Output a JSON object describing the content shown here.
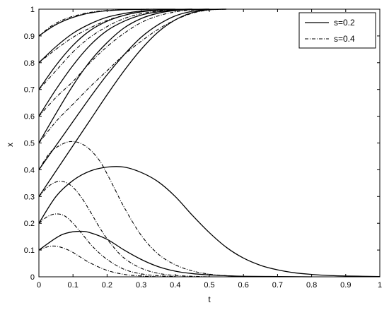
{
  "chart_data": {
    "type": "line",
    "xlabel": "t",
    "ylabel": "x",
    "xlim": [
      0,
      1
    ],
    "ylim": [
      0,
      1
    ],
    "x_ticks": [
      "0",
      "0.1",
      "0.2",
      "0.3",
      "0.4",
      "0.5",
      "0.6",
      "0.7",
      "0.8",
      "0.9",
      "1"
    ],
    "y_ticks": [
      "0",
      "0.1",
      "0.2",
      "0.3",
      "0.4",
      "0.5",
      "0.6",
      "0.7",
      "0.8",
      "0.9",
      "1"
    ],
    "legend": {
      "position": "top-right",
      "entries": [
        {
          "label": "s=0.2",
          "style": "solid"
        },
        {
          "label": "s=0.4",
          "style": "dash-dot"
        }
      ]
    },
    "series": [
      {
        "style": "solid",
        "x": [
          0,
          0.04,
          0.08,
          0.12,
          0.16,
          0.2,
          0.25,
          0.3,
          0.35,
          0.4
        ],
        "y": [
          0.9,
          0.935,
          0.96,
          0.977,
          0.988,
          0.994,
          0.998,
          0.999,
          1,
          1
        ]
      },
      {
        "style": "solid",
        "x": [
          0,
          0.05,
          0.1,
          0.15,
          0.2,
          0.25,
          0.3,
          0.35,
          0.4,
          0.45
        ],
        "y": [
          0.8,
          0.86,
          0.91,
          0.945,
          0.97,
          0.984,
          0.993,
          0.997,
          0.999,
          1
        ]
      },
      {
        "style": "solid",
        "x": [
          0,
          0.05,
          0.1,
          0.15,
          0.2,
          0.25,
          0.3,
          0.35,
          0.4,
          0.45
        ],
        "y": [
          0.7,
          0.79,
          0.865,
          0.92,
          0.955,
          0.977,
          0.99,
          0.996,
          0.999,
          1
        ]
      },
      {
        "style": "solid",
        "x": [
          0,
          0.05,
          0.1,
          0.15,
          0.2,
          0.25,
          0.3,
          0.35,
          0.4,
          0.45,
          0.5
        ],
        "y": [
          0.6,
          0.7,
          0.79,
          0.865,
          0.92,
          0.955,
          0.978,
          0.99,
          0.996,
          0.999,
          1
        ]
      },
      {
        "style": "solid",
        "x": [
          0,
          0.05,
          0.1,
          0.15,
          0.2,
          0.25,
          0.3,
          0.35,
          0.4,
          0.45,
          0.5
        ],
        "y": [
          0.5,
          0.61,
          0.715,
          0.805,
          0.875,
          0.93,
          0.965,
          0.985,
          0.995,
          0.999,
          1
        ]
      },
      {
        "style": "solid",
        "x": [
          0,
          0.05,
          0.1,
          0.15,
          0.2,
          0.25,
          0.3,
          0.35,
          0.4,
          0.45,
          0.5,
          0.55
        ],
        "y": [
          0.4,
          0.49,
          0.58,
          0.67,
          0.755,
          0.83,
          0.895,
          0.942,
          0.975,
          0.992,
          0.999,
          1
        ]
      },
      {
        "style": "solid",
        "x": [
          0,
          0.05,
          0.1,
          0.15,
          0.2,
          0.25,
          0.3,
          0.35,
          0.4,
          0.45,
          0.5,
          0.55
        ],
        "y": [
          0.3,
          0.395,
          0.49,
          0.585,
          0.68,
          0.77,
          0.85,
          0.915,
          0.96,
          0.987,
          0.998,
          1
        ]
      },
      {
        "style": "solid",
        "x": [
          0,
          0.05,
          0.1,
          0.15,
          0.2,
          0.25,
          0.3,
          0.35,
          0.4,
          0.45,
          0.5,
          0.55,
          0.6,
          0.65,
          0.7,
          0.75,
          0.8,
          0.85,
          0.9,
          0.95,
          1
        ],
        "y": [
          0.2,
          0.3,
          0.36,
          0.395,
          0.41,
          0.41,
          0.39,
          0.355,
          0.3,
          0.23,
          0.165,
          0.11,
          0.07,
          0.043,
          0.026,
          0.015,
          0.009,
          0.005,
          0.003,
          0.002,
          0.001
        ]
      },
      {
        "style": "solid",
        "x": [
          0,
          0.05,
          0.08,
          0.12,
          0.15,
          0.2,
          0.25,
          0.3,
          0.35,
          0.4,
          0.45,
          0.5,
          0.55,
          0.6,
          0.7,
          0.8
        ],
        "y": [
          0.1,
          0.145,
          0.163,
          0.17,
          0.165,
          0.14,
          0.1,
          0.065,
          0.038,
          0.021,
          0.012,
          0.007,
          0.004,
          0.002,
          0.001,
          0
        ]
      },
      {
        "style": "dash-dot",
        "x": [
          0,
          0.04,
          0.08,
          0.12,
          0.16,
          0.2,
          0.25,
          0.3,
          0.35,
          0.4
        ],
        "y": [
          0.9,
          0.94,
          0.965,
          0.98,
          0.99,
          0.995,
          0.998,
          1,
          1,
          1
        ]
      },
      {
        "style": "dash-dot",
        "x": [
          0,
          0.05,
          0.1,
          0.15,
          0.2,
          0.25,
          0.3,
          0.35,
          0.4,
          0.45
        ],
        "y": [
          0.8,
          0.85,
          0.895,
          0.93,
          0.958,
          0.977,
          0.99,
          0.996,
          0.999,
          1
        ]
      },
      {
        "style": "dash-dot",
        "x": [
          0,
          0.05,
          0.1,
          0.15,
          0.2,
          0.25,
          0.3,
          0.35,
          0.4,
          0.45,
          0.5
        ],
        "y": [
          0.7,
          0.77,
          0.84,
          0.895,
          0.935,
          0.965,
          0.983,
          0.993,
          0.998,
          0.999,
          1
        ]
      },
      {
        "style": "dash-dot",
        "x": [
          0,
          0.05,
          0.1,
          0.15,
          0.2,
          0.25,
          0.3,
          0.35,
          0.4,
          0.45,
          0.5
        ],
        "y": [
          0.6,
          0.67,
          0.73,
          0.8,
          0.86,
          0.91,
          0.95,
          0.975,
          0.99,
          0.997,
          1
        ]
      },
      {
        "style": "dash-dot",
        "x": [
          0,
          0.05,
          0.1,
          0.15,
          0.2,
          0.25,
          0.3,
          0.35,
          0.4,
          0.45,
          0.5,
          0.55
        ],
        "y": [
          0.5,
          0.58,
          0.645,
          0.71,
          0.77,
          0.83,
          0.88,
          0.925,
          0.96,
          0.985,
          0.997,
          1
        ]
      },
      {
        "style": "dash-dot",
        "x": [
          0,
          0.03,
          0.06,
          0.09,
          0.12,
          0.15,
          0.18,
          0.21,
          0.25,
          0.3,
          0.35,
          0.4,
          0.45,
          0.5,
          0.55,
          0.6
        ],
        "y": [
          0.4,
          0.46,
          0.49,
          0.505,
          0.5,
          0.475,
          0.43,
          0.36,
          0.26,
          0.155,
          0.085,
          0.045,
          0.022,
          0.01,
          0.004,
          0.001
        ]
      },
      {
        "style": "dash-dot",
        "x": [
          0,
          0.03,
          0.06,
          0.09,
          0.12,
          0.15,
          0.18,
          0.21,
          0.25,
          0.3,
          0.35,
          0.4,
          0.45,
          0.5
        ],
        "y": [
          0.3,
          0.34,
          0.357,
          0.345,
          0.305,
          0.245,
          0.18,
          0.125,
          0.07,
          0.032,
          0.013,
          0.005,
          0.002,
          0
        ]
      },
      {
        "style": "dash-dot",
        "x": [
          0,
          0.025,
          0.05,
          0.075,
          0.1,
          0.13,
          0.16,
          0.2,
          0.25,
          0.3,
          0.35,
          0.4
        ],
        "y": [
          0.2,
          0.225,
          0.235,
          0.228,
          0.2,
          0.155,
          0.11,
          0.065,
          0.028,
          0.011,
          0.004,
          0.001
        ]
      },
      {
        "style": "dash-dot",
        "x": [
          0,
          0.02,
          0.04,
          0.06,
          0.09,
          0.12,
          0.15,
          0.2,
          0.25,
          0.3,
          0.35
        ],
        "y": [
          0.1,
          0.11,
          0.115,
          0.112,
          0.098,
          0.075,
          0.052,
          0.024,
          0.009,
          0.003,
          0
        ]
      }
    ]
  }
}
